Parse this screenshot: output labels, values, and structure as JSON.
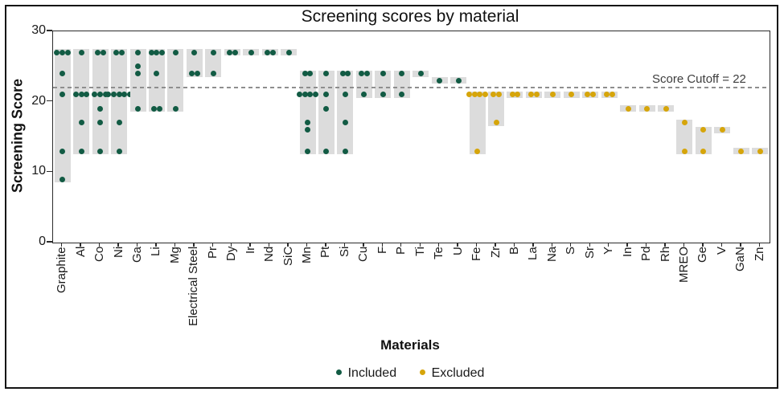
{
  "chart_data": {
    "type": "scatter",
    "title": "Screening scores by material",
    "xlabel": "Materials",
    "ylabel": "Screening Score",
    "ylim": [
      0,
      30
    ],
    "yticks": [
      0,
      10,
      20,
      30
    ],
    "grid": false,
    "cutoff": {
      "value": 22,
      "label": "Score Cutoff = 22"
    },
    "legend_position": "bottom",
    "legend": [
      {
        "label": "Included",
        "color": "#125b44"
      },
      {
        "label": "Excluded",
        "color": "#d6a50a"
      }
    ],
    "colors": {
      "included": "#125b44",
      "excluded": "#d6a50a",
      "range_bar": "#dcdcdc",
      "cutoff_line": "#8e8e8e"
    },
    "materials": [
      {
        "name": "Graphite",
        "status": "included",
        "scores": [
          27,
          27,
          27,
          24,
          21,
          13,
          9
        ]
      },
      {
        "name": "Al",
        "status": "included",
        "scores": [
          27,
          21,
          21,
          21,
          17,
          13
        ]
      },
      {
        "name": "Co",
        "status": "included",
        "scores": [
          27,
          27,
          21,
          21,
          21,
          19,
          17,
          13
        ]
      },
      {
        "name": "Ni",
        "status": "included",
        "scores": [
          27,
          27,
          21,
          21,
          21,
          21,
          21,
          17,
          13
        ]
      },
      {
        "name": "Ga",
        "status": "included",
        "scores": [
          27,
          25,
          24,
          19
        ]
      },
      {
        "name": "Li",
        "status": "included",
        "scores": [
          27,
          27,
          27,
          24,
          19,
          19
        ]
      },
      {
        "name": "Mg",
        "status": "included",
        "scores": [
          27,
          19
        ]
      },
      {
        "name": "Electrical Steel",
        "status": "included",
        "scores": [
          27,
          24,
          24
        ]
      },
      {
        "name": "Pr",
        "status": "included",
        "scores": [
          27,
          24
        ]
      },
      {
        "name": "Dy",
        "status": "included",
        "scores": [
          27,
          27
        ]
      },
      {
        "name": "Ir",
        "status": "included",
        "scores": [
          27
        ]
      },
      {
        "name": "Nd",
        "status": "included",
        "scores": [
          27,
          27
        ]
      },
      {
        "name": "SiC",
        "status": "included",
        "scores": [
          27
        ]
      },
      {
        "name": "Mn",
        "status": "included",
        "scores": [
          24,
          24,
          21,
          21,
          21,
          21,
          17,
          16,
          13
        ]
      },
      {
        "name": "Pt",
        "status": "included",
        "scores": [
          24,
          21,
          19,
          13
        ]
      },
      {
        "name": "Si",
        "status": "included",
        "scores": [
          24,
          24,
          21,
          17,
          13
        ]
      },
      {
        "name": "Cu",
        "status": "included",
        "scores": [
          24,
          24,
          21
        ]
      },
      {
        "name": "F",
        "status": "included",
        "scores": [
          24,
          21
        ]
      },
      {
        "name": "P",
        "status": "included",
        "scores": [
          24,
          21
        ]
      },
      {
        "name": "Ti",
        "status": "included",
        "scores": [
          24
        ]
      },
      {
        "name": "Te",
        "status": "included",
        "scores": [
          23
        ]
      },
      {
        "name": "U",
        "status": "included",
        "scores": [
          23
        ]
      },
      {
        "name": "Fe",
        "status": "excluded",
        "scores": [
          21,
          21,
          21,
          21,
          13
        ]
      },
      {
        "name": "Zr",
        "status": "excluded",
        "scores": [
          21,
          21,
          17
        ]
      },
      {
        "name": "B",
        "status": "excluded",
        "scores": [
          21,
          21
        ]
      },
      {
        "name": "La",
        "status": "excluded",
        "scores": [
          21,
          21
        ]
      },
      {
        "name": "Na",
        "status": "excluded",
        "scores": [
          21
        ]
      },
      {
        "name": "S",
        "status": "excluded",
        "scores": [
          21
        ]
      },
      {
        "name": "Sr",
        "status": "excluded",
        "scores": [
          21,
          21
        ]
      },
      {
        "name": "Y",
        "status": "excluded",
        "scores": [
          21,
          21
        ]
      },
      {
        "name": "In",
        "status": "excluded",
        "scores": [
          19
        ]
      },
      {
        "name": "Pd",
        "status": "excluded",
        "scores": [
          19
        ]
      },
      {
        "name": "Rh",
        "status": "excluded",
        "scores": [
          19
        ]
      },
      {
        "name": "MREO",
        "status": "excluded",
        "scores": [
          17,
          13
        ]
      },
      {
        "name": "Ge",
        "status": "excluded",
        "scores": [
          16,
          13
        ]
      },
      {
        "name": "V",
        "status": "excluded",
        "scores": [
          16
        ]
      },
      {
        "name": "GaN",
        "status": "excluded",
        "scores": [
          13
        ]
      },
      {
        "name": "Zn",
        "status": "excluded",
        "scores": [
          13
        ]
      }
    ]
  }
}
